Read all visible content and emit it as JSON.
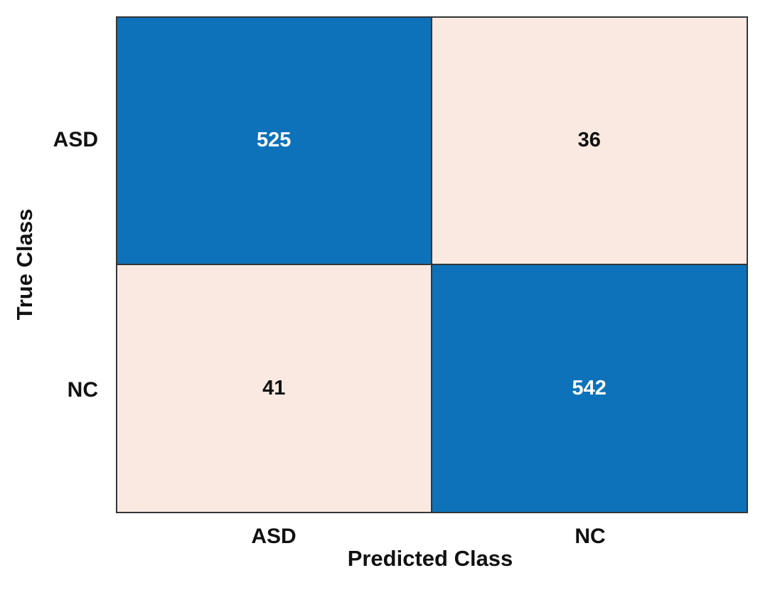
{
  "chart_data": {
    "type": "heatmap",
    "subtype": "confusion-matrix",
    "title": "",
    "xlabel": "Predicted Class",
    "ylabel": "True Class",
    "x_categories": [
      "ASD",
      "NC"
    ],
    "y_categories": [
      "ASD",
      "NC"
    ],
    "values": [
      [
        525,
        36
      ],
      [
        41,
        542
      ]
    ],
    "cell_colors": [
      [
        "#0d72b9",
        "#f9e9e1"
      ],
      [
        "#f9e9e1",
        "#0d72b9"
      ]
    ],
    "text_colors": [
      [
        "#ffffff",
        "#111111"
      ],
      [
        "#111111",
        "#ffffff"
      ]
    ],
    "grid": true,
    "legend_position": "none",
    "axis_ranges": {
      "x": [
        "ASD",
        "NC"
      ],
      "y": [
        "ASD",
        "NC"
      ]
    }
  },
  "colors": {
    "matrix_blue": "#0d72b9",
    "matrix_light": "#f9e9e1",
    "grid_line": "#333638",
    "background": "#ffffff",
    "label_text": "#111111"
  }
}
